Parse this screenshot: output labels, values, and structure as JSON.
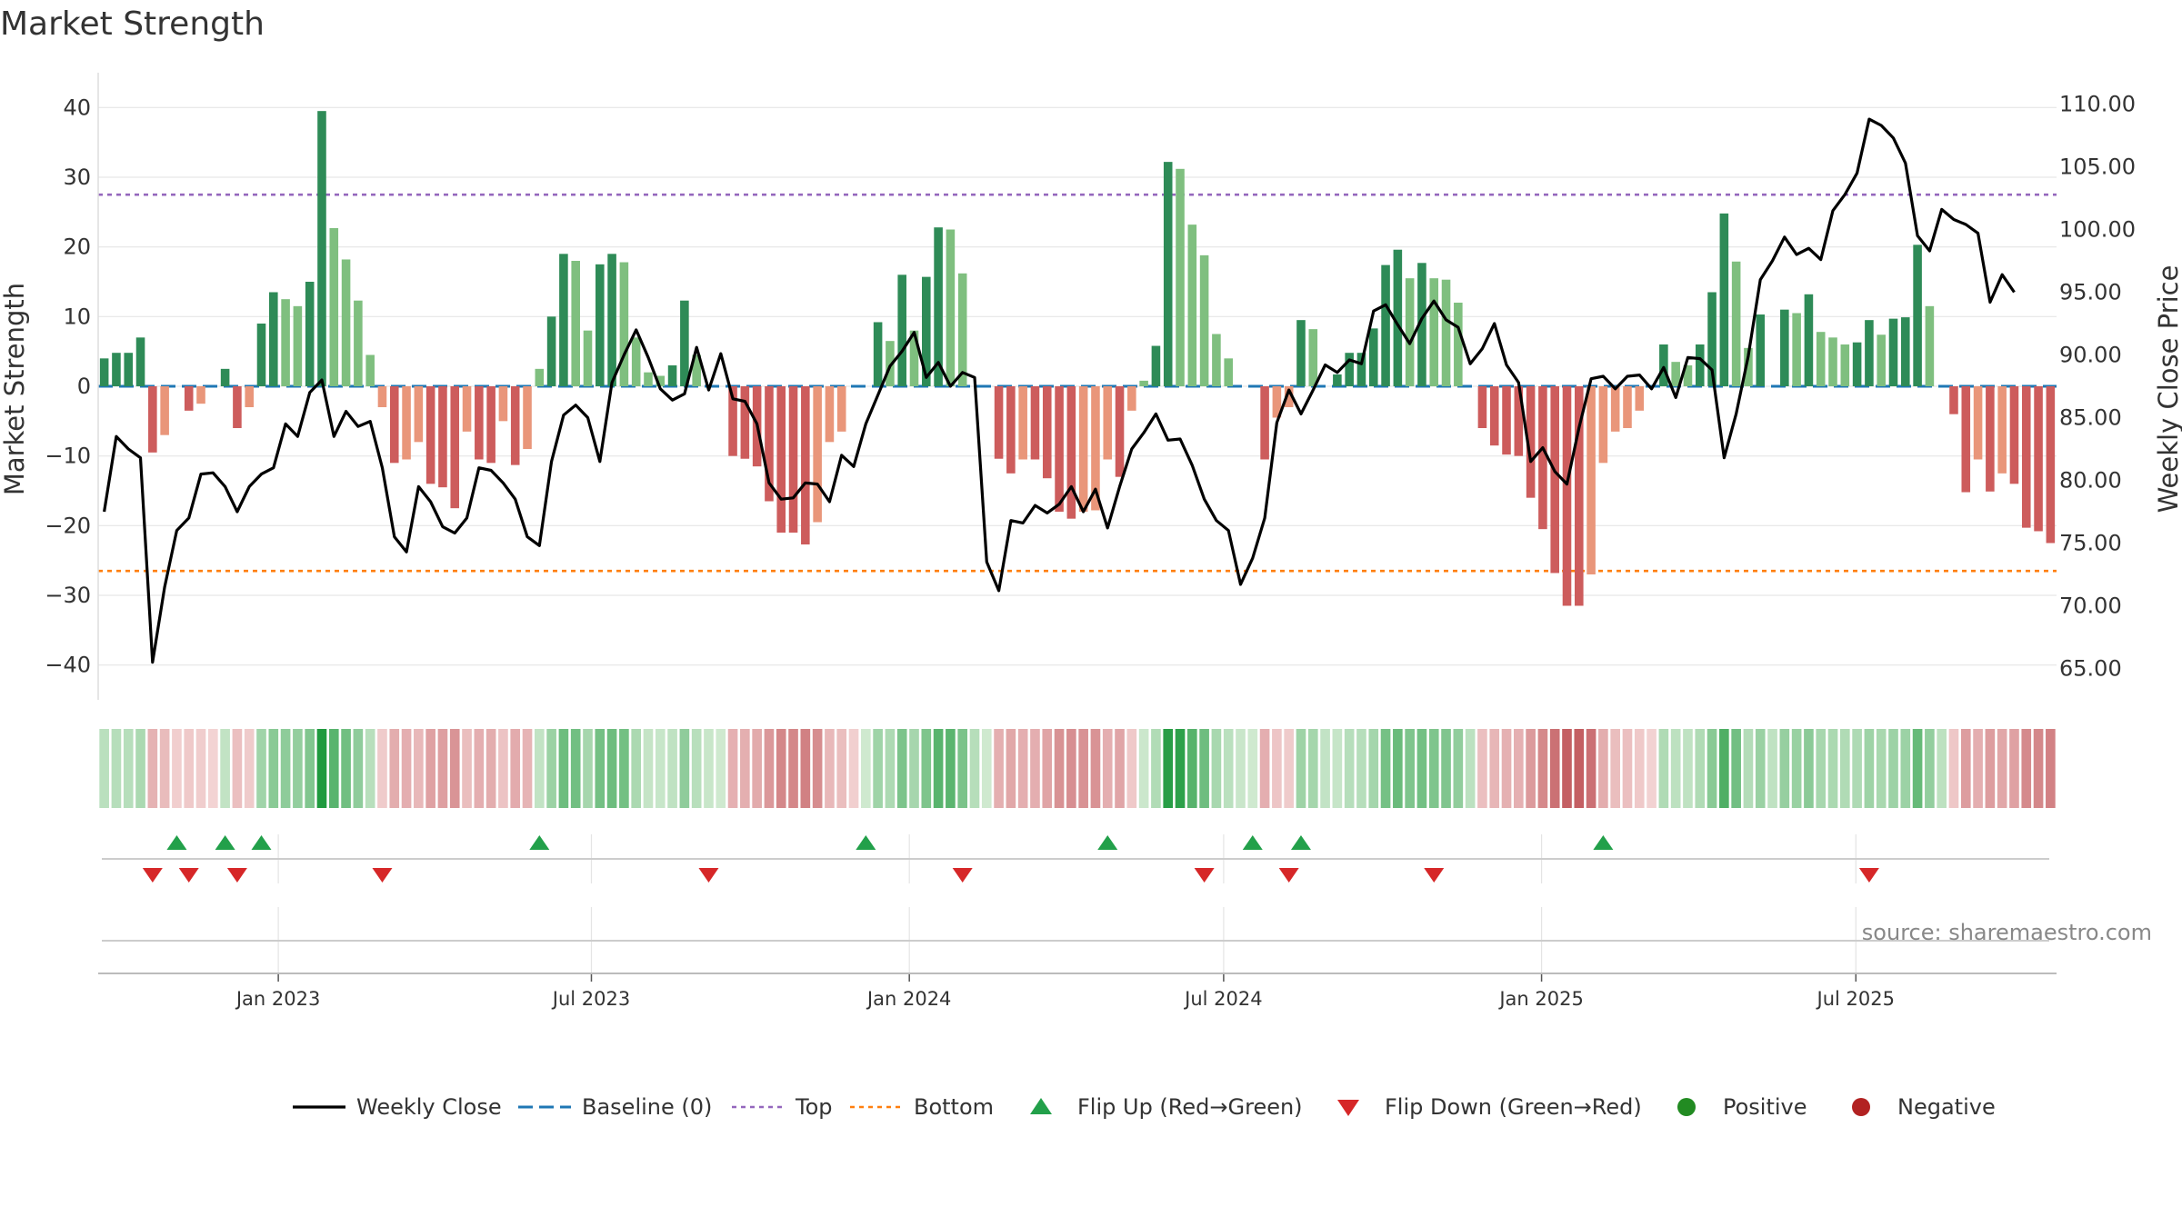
{
  "chart_data": {
    "type": "bar+line",
    "title": "Market Strength",
    "ylabel_left": "Market Strength",
    "ylabel_right": "Weekly Close Price",
    "ylim_left": [
      -45,
      45
    ],
    "ylim_right": [
      62.5,
      112.5
    ],
    "yticks_left": [
      40,
      30,
      20,
      10,
      0,
      -10,
      -20,
      -30,
      -40
    ],
    "yticks_left_labels": [
      "40",
      "30",
      "20",
      "10",
      "0",
      "−10",
      "−20",
      "−30",
      "−40"
    ],
    "yticks_right": [
      110,
      105,
      100,
      95,
      90,
      85,
      80,
      75,
      70,
      65
    ],
    "yticks_right_labels": [
      "110.00",
      "105.00",
      "100.00",
      "95.00",
      "90.00",
      "85.00",
      "80.00",
      "75.00",
      "70.00",
      "65.00"
    ],
    "x_start": "2022-09-30",
    "x_step_days": 7,
    "x_ticks": [
      {
        "label": "Jan 2023",
        "week": 14.4
      },
      {
        "label": "Jul 2023",
        "week": 40.3
      },
      {
        "label": "Jan 2024",
        "week": 66.6
      },
      {
        "label": "Jul 2024",
        "week": 92.6
      },
      {
        "label": "Jan 2025",
        "week": 118.9
      },
      {
        "label": "Jul 2025",
        "week": 144.9
      }
    ],
    "top_level": 27.5,
    "bottom_level": -26.5,
    "strength": [
      4,
      4.8,
      4.8,
      7,
      -9.5,
      -7,
      0,
      -3.5,
      -2.5,
      0,
      2.5,
      -6,
      -3,
      9,
      13.5,
      12.5,
      11.5,
      15,
      39.5,
      22.7,
      18.2,
      12.3,
      4.5,
      -3,
      -11,
      -10.5,
      -8,
      -14,
      -14.5,
      -17.5,
      -6.5,
      -10.5,
      -11,
      -5,
      -11.3,
      -9,
      2.5,
      10,
      19,
      18,
      8,
      17.5,
      19,
      17.8,
      7,
      2,
      1.5,
      3,
      12.3,
      4.5,
      0,
      0,
      -10,
      -10.4,
      -11.5,
      -16.5,
      -21,
      -21,
      -22.7,
      -19.5,
      -8,
      -6.5,
      0,
      0,
      9.2,
      6.5,
      16,
      8,
      15.7,
      22.8,
      22.5,
      16.2,
      0,
      0,
      -10.4,
      -12.5,
      -10.5,
      -10.5,
      -13.2,
      -18,
      -19,
      -18,
      -17.8,
      -10.5,
      -13,
      -3.5,
      0.8,
      5.8,
      32.2,
      31.2,
      23.2,
      18.8,
      7.5,
      4,
      0,
      0,
      -10.5,
      -4.5,
      -3,
      9.5,
      8.2,
      0,
      1.7,
      4.8,
      4.8,
      8.3,
      17.4,
      19.6,
      15.5,
      17.7,
      15.5,
      15.3,
      12,
      0,
      -6,
      -8.5,
      -9.8,
      -10,
      -16,
      -20.5,
      -26.8,
      -31.5,
      -31.5,
      -27,
      -11,
      -6.5,
      -6,
      -3.5,
      0,
      6,
      3.5,
      3,
      6,
      13.5,
      24.8,
      17.9,
      5.5,
      10.3,
      0,
      11,
      10.5,
      13.2,
      7.8,
      7,
      6,
      6.3,
      9.5,
      7.4,
      9.7,
      9.9,
      20.3,
      11.5,
      0,
      -4,
      -15.2,
      -10.5,
      -15.1,
      -12.5,
      -14,
      -20.3,
      -20.8,
      -22.5
    ],
    "weekly_close": [
      77.5,
      83.5,
      82.5,
      81.8,
      65.5,
      71.5,
      76,
      77,
      80.5,
      80.6,
      79.5,
      77.5,
      79.5,
      80.5,
      81,
      84.5,
      83.5,
      87,
      88,
      83.5,
      85.5,
      84.3,
      84.7,
      81,
      75.5,
      74.3,
      79.5,
      78.3,
      76.3,
      75.8,
      77,
      81,
      80.8,
      79.8,
      78.5,
      75.5,
      74.8,
      81.5,
      85.2,
      86,
      85,
      81.5,
      87.8,
      90,
      92,
      89.8,
      87.3,
      86.4,
      86.9,
      90.6,
      87.2,
      90.1,
      86.5,
      86.3,
      84.5,
      79.8,
      78.5,
      78.6,
      79.8,
      79.7,
      78.3,
      82,
      81.1,
      84.5,
      86.8,
      89.1,
      90.3,
      91.8,
      88.2,
      89.4,
      87.5,
      88.6,
      88.2,
      73.5,
      71.2,
      76.8,
      76.6,
      78,
      77.4,
      78.1,
      79.5,
      77.5,
      79.3,
      76.2,
      79.5,
      82.5,
      83.8,
      85.3,
      83.2,
      83.3,
      81.2,
      78.5,
      76.8,
      76,
      71.7,
      73.8,
      77,
      84.6,
      87.2,
      85.3,
      87.2,
      89.2,
      88.6,
      89.6,
      89.3,
      93.5,
      94,
      92.4,
      90.9,
      92.9,
      94.3,
      92.8,
      92.2,
      89.3,
      90.5,
      92.5,
      89.2,
      87.8,
      81.5,
      82.6,
      80.7,
      79.7,
      84.2,
      88.1,
      88.3,
      87.3,
      88.3,
      88.4,
      87.3,
      89,
      86.6,
      89.8,
      89.7,
      88.8,
      81.8,
      85.3,
      89.9,
      96,
      97.5,
      99.4,
      98,
      98.5,
      97.6,
      101.5,
      102.8,
      104.5,
      108.8,
      108.3,
      107.3,
      105.3,
      99.5,
      98.3,
      101.6,
      100.8,
      100.4,
      99.7,
      94.2,
      96.4,
      95
    ],
    "flip_up_weeks": [
      6,
      10,
      13,
      36,
      63,
      83,
      95,
      99,
      124
    ],
    "flip_down_weeks": [
      4,
      7,
      11,
      23,
      50,
      71,
      91,
      98,
      110,
      146
    ],
    "legend": [
      {
        "key": "weekly_close",
        "label": "Weekly Close"
      },
      {
        "key": "baseline",
        "label": "Baseline (0)"
      },
      {
        "key": "top",
        "label": "Top"
      },
      {
        "key": "bottom",
        "label": "Bottom"
      },
      {
        "key": "flip_up",
        "label": "Flip Up (Red→Green)"
      },
      {
        "key": "flip_down",
        "label": "Flip Down (Green→Red)"
      },
      {
        "key": "positive",
        "label": "Positive"
      },
      {
        "key": "negative",
        "label": "Negative"
      }
    ]
  },
  "source_text": "source: sharemaestro.com",
  "colors": {
    "strong_pos": "#2e8b57",
    "weak_pos": "#7fbf7f",
    "strong_neg": "#cd5c5c",
    "weak_neg": "#e9967a",
    "line": "#000000",
    "baseline": "#1f77b4",
    "top": "#9467bd",
    "bottom": "#ff7f0e",
    "flip_up": "#22a04a",
    "flip_down": "#d62728",
    "positive_dot": "#228b22",
    "negative_dot": "#b22222",
    "grid": "#e6e6e6"
  }
}
